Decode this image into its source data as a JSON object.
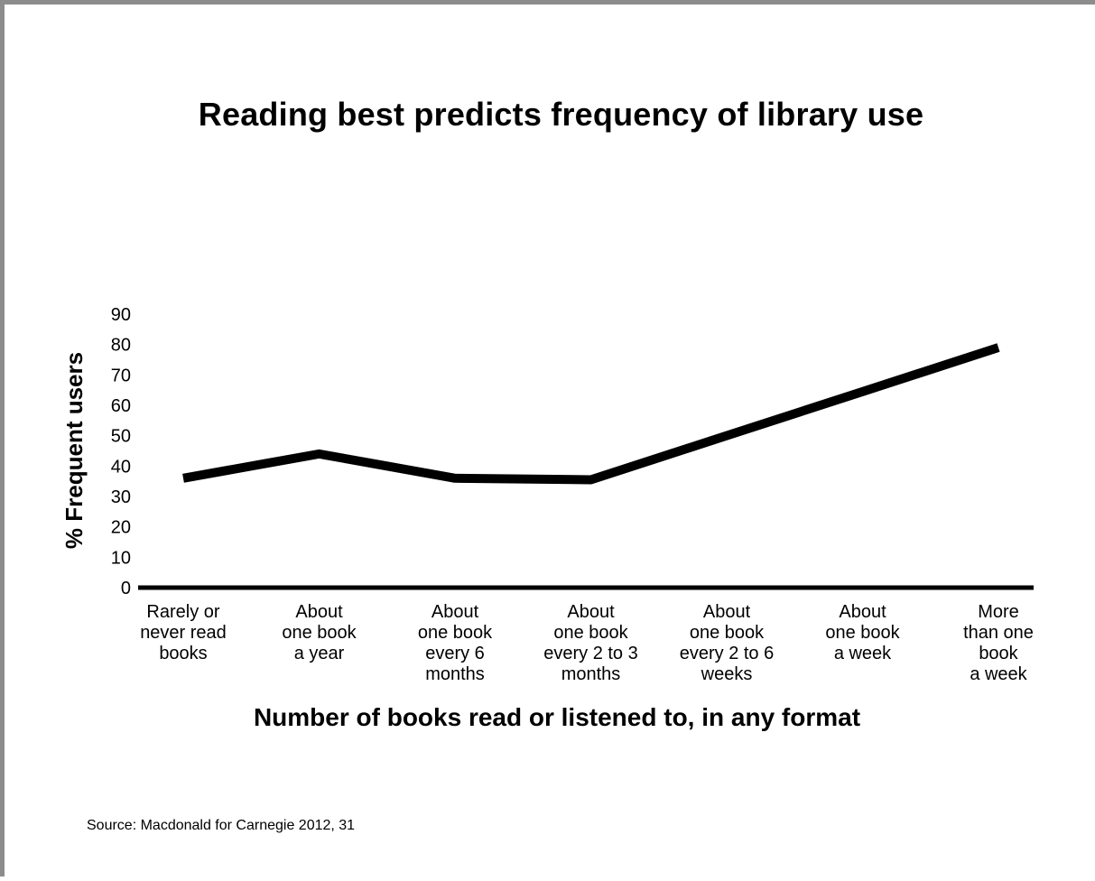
{
  "chart_data": {
    "type": "line",
    "title": "Reading best predicts frequency of library use",
    "xlabel": "Number of books read or listened to, in any format",
    "ylabel": "% Frequent users",
    "ylim": [
      0,
      90
    ],
    "yticks": [
      0,
      10,
      20,
      30,
      40,
      50,
      60,
      70,
      80,
      90
    ],
    "grid": false,
    "categories": [
      [
        "Rarely or",
        "never read",
        "books"
      ],
      [
        "About",
        "one book",
        "a year"
      ],
      [
        "About",
        "one book",
        "every 6",
        "months"
      ],
      [
        "About",
        "one book",
        "every 2 to 3",
        "months"
      ],
      [
        "About",
        "one book",
        "every 2 to 6",
        "weeks"
      ],
      [
        "About",
        "one book",
        "a week"
      ],
      [
        "More",
        "than one",
        "book",
        "a week"
      ]
    ],
    "series": [
      {
        "values": [
          36,
          44,
          36,
          35.5,
          50,
          64.5,
          79
        ],
        "color": "#000000"
      }
    ]
  },
  "source": "Source: Macdonald for Carnegie 2012, 31"
}
